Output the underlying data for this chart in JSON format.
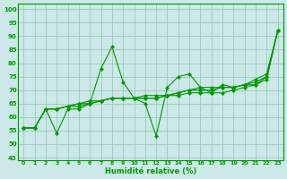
{
  "xlabel": "Humidité relative (%)",
  "background_color": "#cce8e8",
  "grid_color": "#99ccbb",
  "line_color": "#009900",
  "xlim": [
    -0.5,
    23.5
  ],
  "ylim": [
    44,
    102
  ],
  "yticks": [
    45,
    50,
    55,
    60,
    65,
    70,
    75,
    80,
    85,
    90,
    95,
    100
  ],
  "xticks": [
    0,
    1,
    2,
    3,
    4,
    5,
    6,
    7,
    8,
    9,
    10,
    11,
    12,
    13,
    14,
    15,
    16,
    17,
    18,
    19,
    20,
    21,
    22,
    23
  ],
  "xtick_labels": [
    "0",
    "1",
    "2",
    "3",
    "4",
    "5",
    "6",
    "7",
    "8",
    "9",
    "10",
    "11",
    "12",
    "13",
    "14",
    "15",
    "16",
    "17",
    "18",
    "19",
    "20",
    "21",
    "22",
    "23"
  ],
  "series": [
    [
      56,
      56,
      63,
      54,
      63,
      63,
      65,
      78,
      86,
      73,
      67,
      65,
      53,
      71,
      75,
      76,
      71,
      69,
      72,
      71,
      72,
      74,
      76,
      92
    ],
    [
      56,
      56,
      63,
      63,
      64,
      64,
      65,
      66,
      67,
      67,
      67,
      67,
      67,
      68,
      69,
      70,
      70,
      70,
      71,
      71,
      72,
      72,
      74,
      92
    ],
    [
      56,
      56,
      63,
      63,
      64,
      65,
      65,
      66,
      67,
      67,
      67,
      67,
      67,
      68,
      69,
      70,
      71,
      71,
      71,
      71,
      72,
      73,
      75,
      92
    ],
    [
      56,
      56,
      63,
      63,
      64,
      65,
      66,
      66,
      67,
      67,
      67,
      68,
      68,
      68,
      68,
      69,
      69,
      69,
      69,
      70,
      71,
      72,
      75,
      92
    ]
  ]
}
